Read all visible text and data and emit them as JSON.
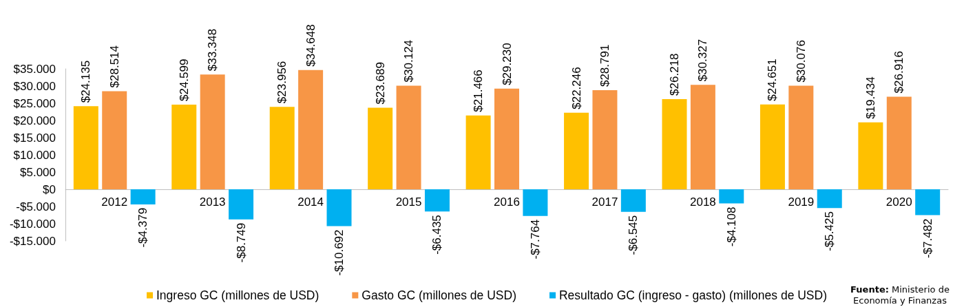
{
  "chart_data": {
    "type": "bar",
    "categories": [
      "2012",
      "2013",
      "2014",
      "2015",
      "2016",
      "2017",
      "2018",
      "2019",
      "2020"
    ],
    "series": [
      {
        "name": "Ingreso GC (millones de USD)",
        "color": "#ffc000",
        "values": [
          24135,
          24599,
          23956,
          23689,
          21466,
          22246,
          26218,
          24651,
          19434
        ],
        "value_labels": [
          "$24.135",
          "$24.599",
          "$23.956",
          "$23.689",
          "$21.466",
          "$22.246",
          "$26.218",
          "$24.651",
          "$19.434"
        ]
      },
      {
        "name": "Gasto GC (millones de USD)",
        "color": "#f79646",
        "values": [
          28514,
          33348,
          34648,
          30124,
          29230,
          28791,
          30327,
          30076,
          26916
        ],
        "value_labels": [
          "$28.514",
          "$33.348",
          "$34.648",
          "$30.124",
          "$29.230",
          "$28.791",
          "$30.327",
          "$30.076",
          "$26.916"
        ]
      },
      {
        "name": "Resultado GC (ingreso - gasto) (millones de USD)",
        "color": "#00b0f0",
        "values": [
          -4379,
          -8749,
          -10692,
          -6435,
          -7764,
          -6545,
          -4108,
          -5425,
          -7482
        ],
        "value_labels": [
          "-$4.379",
          "-$8.749",
          "-$10.692",
          "-$6.435",
          "-$7.764",
          "-$6.545",
          "-$4.108",
          "-$5.425",
          "-$7.482"
        ]
      }
    ],
    "ylim": [
      -15000,
      35000
    ],
    "yticks": [
      {
        "value": -15000,
        "label": "-$15.000"
      },
      {
        "value": -10000,
        "label": "-$10.000"
      },
      {
        "value": -5000,
        "label": "-$5.000"
      },
      {
        "value": 0,
        "label": "$0"
      },
      {
        "value": 5000,
        "label": "$5.000"
      },
      {
        "value": 10000,
        "label": "$10.000"
      },
      {
        "value": 15000,
        "label": "$15.000"
      },
      {
        "value": 20000,
        "label": "$20.000"
      },
      {
        "value": 25000,
        "label": "$25.000"
      },
      {
        "value": 30000,
        "label": "$30.000"
      },
      {
        "value": 35000,
        "label": "$35.000"
      }
    ],
    "grid": false,
    "legend": "bottom",
    "annotations": [
      "Fuente: Ministerio de Economía y Finanzas"
    ]
  }
}
